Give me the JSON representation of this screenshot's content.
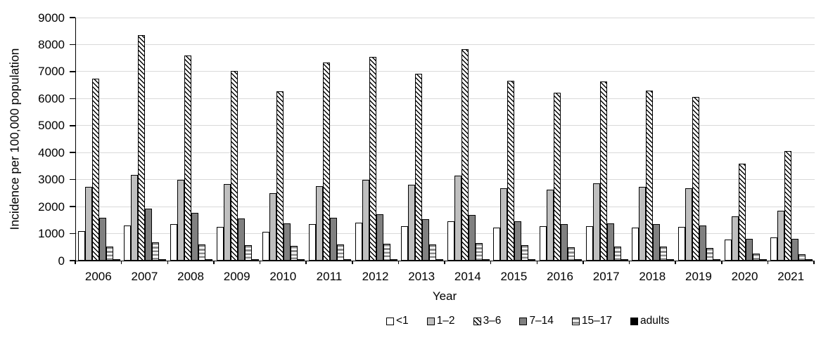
{
  "chart_data": {
    "type": "bar",
    "title": "",
    "xlabel": "Year",
    "ylabel": "Incidence per 100,000 population",
    "ylim": [
      0,
      9000
    ],
    "ytick_step": 1000,
    "grid": true,
    "legend_position": "bottom",
    "categories": [
      "2006",
      "2007",
      "2008",
      "2009",
      "2010",
      "2011",
      "2012",
      "2013",
      "2014",
      "2015",
      "2016",
      "2017",
      "2018",
      "2019",
      "2020",
      "2021"
    ],
    "series": [
      {
        "name": "<1",
        "pattern": "white-outline",
        "values": [
          1080,
          1300,
          1360,
          1240,
          1070,
          1360,
          1400,
          1280,
          1470,
          1230,
          1280,
          1280,
          1220,
          1240,
          780,
          870
        ]
      },
      {
        "name": "1–2",
        "pattern": "light-gray",
        "values": [
          2720,
          3180,
          3000,
          2840,
          2490,
          2750,
          2990,
          2810,
          3150,
          2680,
          2640,
          2850,
          2720,
          2680,
          1650,
          1840
        ]
      },
      {
        "name": "3–6",
        "pattern": "diagonal-hatch",
        "values": [
          6740,
          8350,
          7600,
          7020,
          6260,
          7330,
          7550,
          6920,
          7830,
          6660,
          6220,
          6630,
          6300,
          6070,
          3600,
          4060
        ]
      },
      {
        "name": "7–14",
        "pattern": "dark-gray",
        "values": [
          1600,
          1930,
          1780,
          1560,
          1390,
          1580,
          1710,
          1530,
          1690,
          1450,
          1360,
          1390,
          1360,
          1300,
          800,
          800
        ]
      },
      {
        "name": "15–17",
        "pattern": "horizontal-stripes",
        "values": [
          530,
          670,
          590,
          570,
          550,
          600,
          620,
          590,
          660,
          560,
          500,
          520,
          510,
          480,
          270,
          240
        ]
      },
      {
        "name": "adults",
        "pattern": "black",
        "values": [
          30,
          30,
          30,
          30,
          30,
          30,
          30,
          30,
          30,
          30,
          30,
          30,
          30,
          30,
          20,
          20
        ]
      }
    ],
    "colors": {
      "bar_border": "#000000",
      "axis": "#000000",
      "gridline": "#d9d9d9",
      "light_gray_fill": "#bfbfbf",
      "dark_gray_fill": "#808080",
      "stripe_gray_fill": "#8c8c8c",
      "hatch_line": "#000000",
      "text": "#000000"
    }
  }
}
